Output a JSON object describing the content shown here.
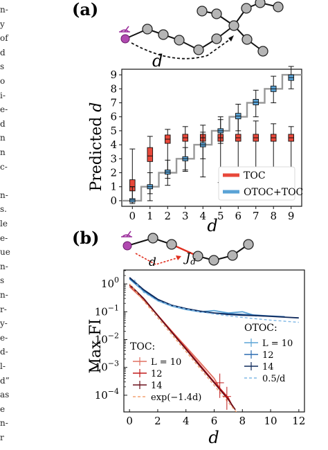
{
  "margin_lines": [
    "n-",
    "y",
    "of",
    "d",
    "s",
    "o",
    "i-",
    "e-",
    "d",
    "n",
    "n",
    "c-",
    "",
    "n-",
    "s.",
    "le",
    "e-",
    "ue",
    "n-",
    "s",
    "n-",
    "r-",
    "y-",
    "e-",
    "d-",
    "l-",
    "d”",
    "as",
    "e",
    "n-",
    "r"
  ],
  "panel_a": {
    "label": "(a)",
    "schematic_d": "d",
    "chart_data": {
      "type": "box",
      "ylabel_text": "Predicted",
      "ylabel_var": "d",
      "xlabel": "d",
      "categories": [
        0,
        1,
        2,
        3,
        4,
        5,
        6,
        7,
        8,
        9
      ],
      "ylim": [
        -0.4,
        9.4
      ],
      "xlim": [
        -0.6,
        9.6
      ],
      "yticks": [
        0,
        1,
        2,
        3,
        4,
        5,
        6,
        7,
        8,
        9
      ],
      "xticks": [
        0,
        1,
        2,
        3,
        4,
        5,
        6,
        7,
        8,
        9
      ],
      "legend": {
        "placement": "lower right",
        "entries": [
          "TOC",
          "OTOC+TOC"
        ]
      },
      "colors": {
        "toc": "#e8483a",
        "otoc": "#5aa3d6",
        "ideal": "#999999"
      },
      "series": [
        {
          "name": "TOC",
          "boxes": [
            {
              "x": 0,
              "median": 1.0,
              "q1": 0.7,
              "q3": 1.5,
              "wlo": 0.0,
              "whi": 3.7
            },
            {
              "x": 1,
              "median": 3.2,
              "q1": 2.8,
              "q3": 3.8,
              "wlo": 0.5,
              "whi": 4.6
            },
            {
              "x": 2,
              "median": 4.4,
              "q1": 4.1,
              "q3": 4.7,
              "wlo": 1.6,
              "whi": 5.1
            },
            {
              "x": 3,
              "median": 4.5,
              "q1": 4.25,
              "q3": 4.75,
              "wlo": 2.2,
              "whi": 5.3
            },
            {
              "x": 4,
              "median": 4.5,
              "q1": 4.25,
              "q3": 4.75,
              "wlo": 1.7,
              "whi": 5.4
            },
            {
              "x": 5,
              "median": 4.5,
              "q1": 4.25,
              "q3": 4.75,
              "wlo": 1.3,
              "whi": 5.8
            },
            {
              "x": 6,
              "median": 4.5,
              "q1": 4.25,
              "q3": 4.75,
              "wlo": 0.8,
              "whi": 5.9
            },
            {
              "x": 7,
              "median": 4.5,
              "q1": 4.25,
              "q3": 4.75,
              "wlo": 1.9,
              "whi": 5.7
            },
            {
              "x": 8,
              "median": 4.5,
              "q1": 4.25,
              "q3": 4.75,
              "wlo": 1.6,
              "whi": 5.5
            },
            {
              "x": 9,
              "median": 4.5,
              "q1": 4.25,
              "q3": 4.75,
              "wlo": 1.3,
              "whi": 5.3
            }
          ]
        },
        {
          "name": "OTOC+TOC",
          "boxes": [
            {
              "x": 0,
              "median": 0.05,
              "q1": -0.1,
              "q3": 0.15,
              "wlo": -0.2,
              "whi": 1.0
            },
            {
              "x": 1,
              "median": 1.0,
              "q1": 0.85,
              "q3": 1.15,
              "wlo": 0.0,
              "whi": 2.0
            },
            {
              "x": 2,
              "median": 2.05,
              "q1": 1.9,
              "q3": 2.2,
              "wlo": 1.1,
              "whi": 2.9
            },
            {
              "x": 3,
              "median": 3.0,
              "q1": 2.85,
              "q3": 3.15,
              "wlo": 2.1,
              "whi": 3.8
            },
            {
              "x": 4,
              "median": 4.0,
              "q1": 3.85,
              "q3": 4.15,
              "wlo": 3.0,
              "whi": 4.9
            },
            {
              "x": 5,
              "median": 5.0,
              "q1": 4.85,
              "q3": 5.15,
              "wlo": 4.1,
              "whi": 6.0
            },
            {
              "x": 6,
              "median": 6.05,
              "q1": 5.85,
              "q3": 6.25,
              "wlo": 5.0,
              "whi": 6.9
            },
            {
              "x": 7,
              "median": 7.05,
              "q1": 6.85,
              "q3": 7.25,
              "wlo": 6.0,
              "whi": 7.9
            },
            {
              "x": 8,
              "median": 8.0,
              "q1": 7.8,
              "q3": 8.2,
              "wlo": 7.0,
              "whi": 8.9
            },
            {
              "x": 9,
              "median": 8.8,
              "q1": 8.6,
              "q3": 9.0,
              "wlo": 8.0,
              "whi": 9.6
            }
          ]
        }
      ]
    }
  },
  "panel_b": {
    "label": "(b)",
    "schematic_d": "d",
    "schematic_J": "J",
    "schematic_J_sub": "d",
    "chart_data": {
      "type": "line",
      "ylabel": "Max FI",
      "xlabel": "d",
      "xlim": [
        -0.4,
        12.4
      ],
      "ylim_log10": [
        -4.6,
        0.5
      ],
      "xticks": [
        0,
        2,
        4,
        6,
        8,
        10,
        12
      ],
      "ytick_labels": [
        {
          "base": "10",
          "exp": "0",
          "v": 0
        },
        {
          "base": "10",
          "exp": "−1",
          "v": -1
        },
        {
          "base": "10",
          "exp": "−2",
          "v": -2
        },
        {
          "base": "10",
          "exp": "−3",
          "v": -3
        },
        {
          "base": "10",
          "exp": "−4",
          "v": -4
        }
      ],
      "legend_toc": {
        "title": "TOC:",
        "entries": [
          "L = 10",
          "12",
          "14",
          "exp(−1.4d)"
        ]
      },
      "legend_otoc": {
        "title": "OTOC:",
        "entries": [
          "L = 10",
          "12",
          "14",
          "0.5/d"
        ]
      },
      "series": [
        {
          "name": "TOC L=10",
          "color": "#e07060",
          "x": [
            0,
            1,
            2,
            3,
            4,
            5,
            6,
            6.6
          ],
          "y": [
            0.8,
            0.27,
            0.075,
            0.02,
            0.0055,
            0.0015,
            0.0004,
            0.00012
          ]
        },
        {
          "name": "TOC L=12",
          "color": "#c01818",
          "x": [
            0,
            1,
            2,
            3,
            4,
            5,
            6,
            7,
            7.3
          ],
          "y": [
            0.9,
            0.3,
            0.075,
            0.019,
            0.0048,
            0.0012,
            0.0003,
            8e-05,
            4e-05
          ]
        },
        {
          "name": "TOC L=14",
          "color": "#6a0f1a",
          "x": [
            0,
            1,
            2,
            3,
            4,
            5,
            6,
            7,
            7.5
          ],
          "y": [
            0.95,
            0.3,
            0.073,
            0.018,
            0.0045,
            0.0011,
            0.00028,
            7e-05,
            3e-05
          ]
        },
        {
          "name": "exp(-1.4d)",
          "color": "#f4a070",
          "dashed": true,
          "x": [
            0,
            1,
            2,
            3,
            4,
            5,
            6,
            7,
            8
          ],
          "y": [
            1.0,
            0.2466,
            0.0608,
            0.015,
            0.0037,
            0.00091,
            0.000225,
            5.5e-05,
            1.37e-05
          ]
        },
        {
          "name": "OTOC L=10",
          "color": "#5aa3d6",
          "x": [
            0,
            1,
            2,
            3,
            4,
            5,
            6,
            7,
            8,
            9
          ],
          "y": [
            1.5,
            0.55,
            0.25,
            0.16,
            0.12,
            0.1,
            0.11,
            0.09,
            0.1,
            0.07
          ]
        },
        {
          "name": "OTOC L=12",
          "color": "#2b6cb0",
          "x": [
            0,
            1,
            2,
            3,
            4,
            5,
            6,
            7,
            8,
            9,
            10,
            11
          ],
          "y": [
            1.6,
            0.6,
            0.27,
            0.17,
            0.13,
            0.1,
            0.09,
            0.085,
            0.08,
            0.075,
            0.07,
            0.066
          ]
        },
        {
          "name": "OTOC L=14",
          "color": "#0f2a5c",
          "x": [
            0,
            1,
            2,
            3,
            4,
            5,
            6,
            7,
            8,
            9,
            10,
            11,
            12
          ],
          "y": [
            1.7,
            0.62,
            0.28,
            0.17,
            0.13,
            0.105,
            0.09,
            0.08,
            0.075,
            0.072,
            0.068,
            0.064,
            0.06
          ]
        },
        {
          "name": "0.5/d",
          "color": "#7fb8e6",
          "dashed": true,
          "x": [
            0.35,
            0.5,
            1,
            2,
            3,
            4,
            5,
            6,
            7,
            8,
            9,
            10,
            11,
            12
          ],
          "y": [
            1.43,
            1.0,
            0.5,
            0.25,
            0.1667,
            0.125,
            0.1,
            0.0833,
            0.0714,
            0.0625,
            0.0556,
            0.05,
            0.0455,
            0.0417
          ]
        }
      ]
    }
  }
}
